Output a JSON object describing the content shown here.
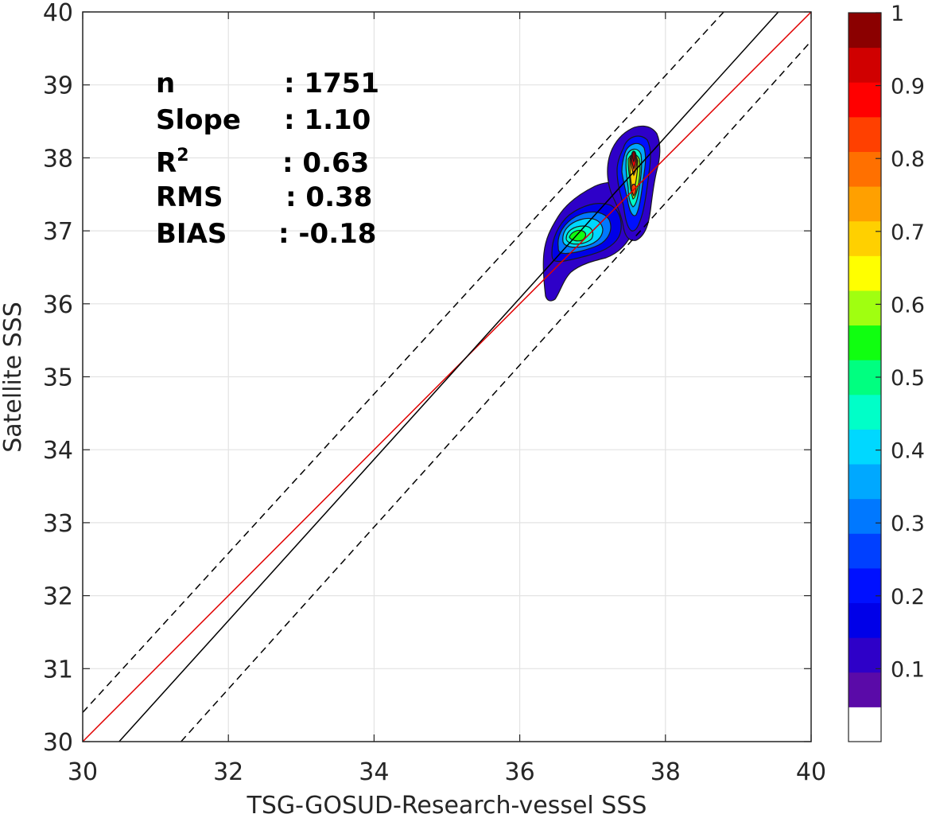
{
  "chart_data": {
    "type": "scatter",
    "subtype": "density-contour",
    "xlabel": "TSG-GOSUD-Research-vessel SSS",
    "ylabel": "Satellite SSS",
    "xlim": [
      30,
      40
    ],
    "ylim": [
      30,
      40
    ],
    "x_ticks": [
      "30",
      "32",
      "34",
      "36",
      "38",
      "40"
    ],
    "y_ticks": [
      "30",
      "31",
      "32",
      "33",
      "34",
      "35",
      "36",
      "37",
      "38",
      "39",
      "40"
    ],
    "grid": true,
    "stats": [
      {
        "label": "n",
        "value": ": 1751"
      },
      {
        "label": "Slope",
        "value": ": 1.10"
      },
      {
        "label": "R",
        "sup": "2",
        "value": ": 0.63"
      },
      {
        "label": "RMS",
        "value": ": 0.38"
      },
      {
        "label": "BIAS",
        "value": ": -0.18"
      }
    ],
    "lines": [
      {
        "kind": "one-to-one",
        "color": "#e00000",
        "style": "solid",
        "x": [
          30,
          40
        ],
        "y": [
          30,
          40
        ]
      },
      {
        "kind": "regression",
        "color": "#000000",
        "style": "solid",
        "x": [
          30.5,
          39.55
        ],
        "y": [
          30,
          40
        ]
      },
      {
        "kind": "upper-bound",
        "color": "#000000",
        "style": "dashed",
        "x": [
          30,
          38.8
        ],
        "y": [
          30.4,
          40
        ]
      },
      {
        "kind": "lower-bound",
        "color": "#000000",
        "style": "dashed",
        "x": [
          31.35,
          40
        ],
        "y": [
          30,
          39.6
        ]
      }
    ],
    "clusters": [
      {
        "center_x": 36.75,
        "center_y": 36.88,
        "note": "secondary density peak"
      },
      {
        "center_x": 37.55,
        "center_y": 38.0,
        "note": "primary density peak"
      }
    ],
    "colorbar": {
      "ticks": [
        "0.1",
        "0.2",
        "0.3",
        "0.4",
        "0.5",
        "0.6",
        "0.7",
        "0.8",
        "0.9",
        "1"
      ],
      "tick_values": [
        0.1,
        0.2,
        0.3,
        0.4,
        0.5,
        0.6,
        0.7,
        0.8,
        0.9,
        1.0
      ],
      "range": [
        0,
        1
      ],
      "colors": [
        "#ffffff",
        "#5a0aa8",
        "#2e00c8",
        "#0000e8",
        "#0010ff",
        "#0040ff",
        "#0078ff",
        "#00a8ff",
        "#00d8ff",
        "#00ffc8",
        "#00ff80",
        "#10ff10",
        "#a0ff10",
        "#ffff00",
        "#ffd000",
        "#ffa000",
        "#ff7000",
        "#ff4000",
        "#ff0000",
        "#d00000",
        "#8b0000"
      ]
    }
  }
}
